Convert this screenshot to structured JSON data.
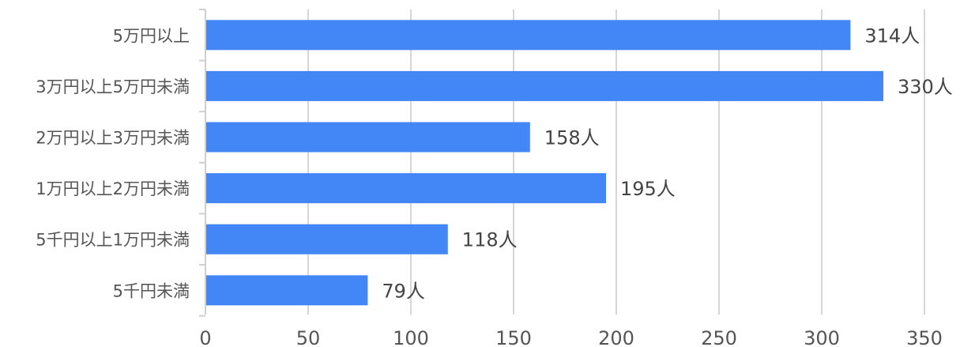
{
  "chart_data": {
    "type": "bar",
    "orientation": "horizontal",
    "title": "",
    "xlabel": "",
    "ylabel": "",
    "categories": [
      "5万円以上",
      "3万円以上5万円未満",
      "2万円以上3万円未満",
      "1万円以上2万円未満",
      "5千円以上1万円未満",
      "5千円未満"
    ],
    "values": [
      314,
      330,
      158,
      195,
      118,
      79
    ],
    "value_labels": [
      "314人",
      "330人",
      "158人",
      "195人",
      "118人",
      "79人"
    ],
    "x_ticks": [
      "0",
      "50",
      "100",
      "150",
      "200",
      "250",
      "300",
      "350"
    ],
    "xlim": [
      0,
      350
    ],
    "grid": true,
    "bar_color": "#4287f5"
  }
}
